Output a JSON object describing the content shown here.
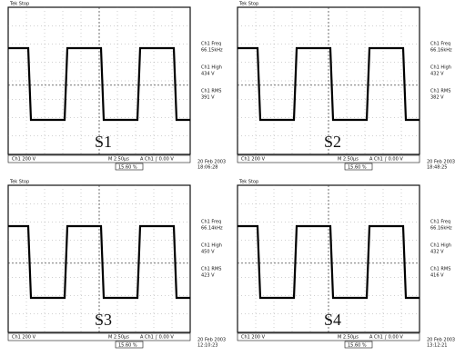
{
  "panels": [
    {
      "status": "Tek Stop",
      "label": "S1",
      "readouts": [
        {
          "name": "Ch1 Freq",
          "value": "66.15kHz"
        },
        {
          "name": "Ch1 High",
          "value": "434 V"
        },
        {
          "name": "Ch1 RMS",
          "value": "391 V"
        }
      ],
      "channel": "Ch1 200 V",
      "timebase": "M 2.50μs",
      "trigger": "A Ch1 ∫ 0.00 V",
      "position": "15.60 %",
      "date": "20 Feb 2003",
      "time": "18:06:28"
    },
    {
      "status": "Tek Stop",
      "label": "S2",
      "readouts": [
        {
          "name": "Ch1 Freq",
          "value": "66.16kHz"
        },
        {
          "name": "Ch1 High",
          "value": "432 V"
        },
        {
          "name": "Ch1 RMS",
          "value": "382 V"
        }
      ],
      "channel": "Ch1 200 V",
      "timebase": "M 2.50μs",
      "trigger": "A Ch1 ∫ 0.00 V",
      "position": "15.60 %",
      "date": "20 Feb 2003",
      "time": "18:48:25"
    },
    {
      "status": "Tek Stop",
      "label": "S3",
      "readouts": [
        {
          "name": "Ch1 Freq",
          "value": "66.14kHz"
        },
        {
          "name": "Ch1 High",
          "value": "450 V"
        },
        {
          "name": "Ch1 RMS",
          "value": "423 V"
        }
      ],
      "channel": "Ch1 200 V",
      "timebase": "M 2.50μs",
      "trigger": "A Ch1 ∫ 0.00 V",
      "position": "15.60 %",
      "date": "20 Feb 2003",
      "time": "12:10:23"
    },
    {
      "status": "Tek Stop",
      "label": "S4",
      "readouts": [
        {
          "name": "Ch1 Freq",
          "value": "66.16kHz"
        },
        {
          "name": "Ch1 High",
          "value": "432 V"
        },
        {
          "name": "Ch1 RMS",
          "value": "416 V"
        }
      ],
      "channel": "Ch1 200 V",
      "timebase": "M 2.50μs",
      "trigger": "A Ch1 ∫ 0.00 V",
      "position": "15.60 %",
      "date": "20 Feb 2003",
      "time": "13:12:21"
    }
  ]
}
